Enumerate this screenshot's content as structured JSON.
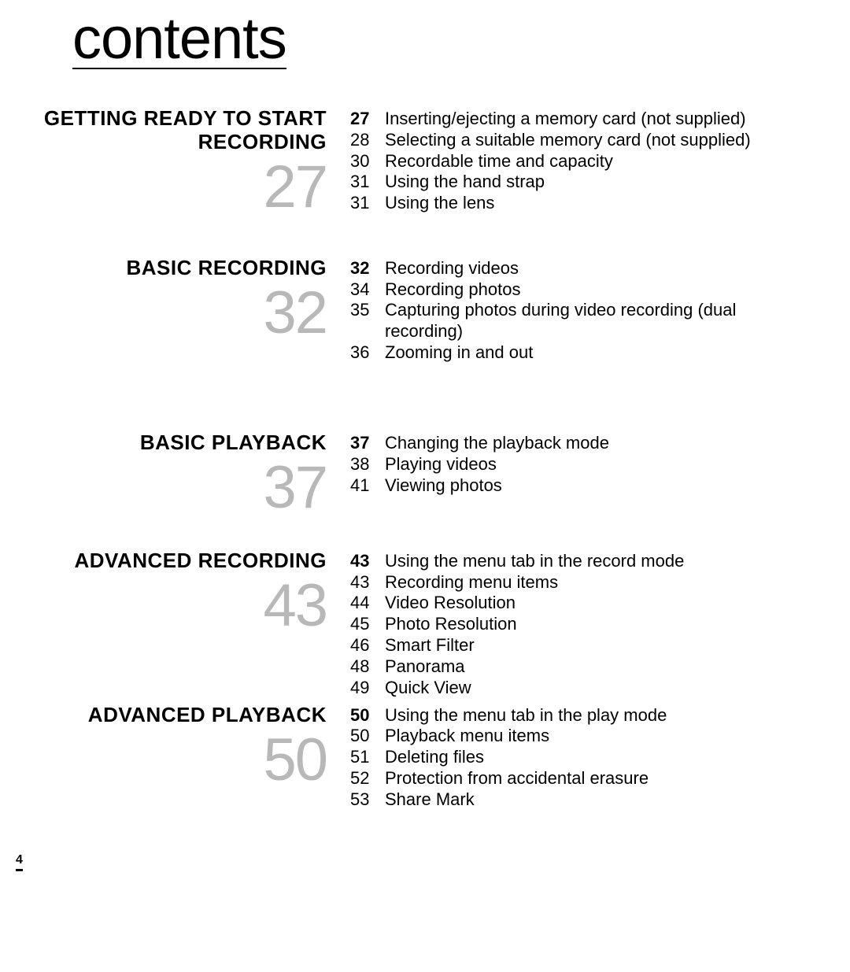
{
  "title": "contents",
  "pageNumber": "4",
  "gap_after": [
    50,
    86,
    40,
    6,
    12
  ],
  "sections": [
    {
      "title": "GETTING READY TO START RECORDING",
      "number": "27",
      "entries": [
        {
          "page": "27",
          "bold": true,
          "text": "Inserting/ejecting a memory card (not supplied)"
        },
        {
          "page": "28",
          "bold": false,
          "text": "Selecting a suitable memory card (not supplied)"
        },
        {
          "page": "30",
          "bold": false,
          "text": "Recordable time and capacity"
        },
        {
          "page": "31",
          "bold": false,
          "text": "Using the hand strap"
        },
        {
          "page": "31",
          "bold": false,
          "text": "Using the lens"
        }
      ]
    },
    {
      "title": "BASIC RECORDING",
      "number": "32",
      "entries": [
        {
          "page": "32",
          "bold": true,
          "text": "Recording videos"
        },
        {
          "page": "34",
          "bold": false,
          "text": "Recording photos"
        },
        {
          "page": "35",
          "bold": false,
          "text": "Capturing photos during video recording (dual recording)"
        },
        {
          "page": "36",
          "bold": false,
          "text": "Zooming in and out"
        }
      ]
    },
    {
      "title": "BASIC PLAYBACK",
      "number": "37",
      "entries": [
        {
          "page": "37",
          "bold": true,
          "text": "Changing the playback mode"
        },
        {
          "page": "38",
          "bold": false,
          "text": "Playing videos"
        },
        {
          "page": "41",
          "bold": false,
          "text": "Viewing photos"
        }
      ]
    },
    {
      "title": "ADVANCED RECORDING",
      "number": "43",
      "entries": [
        {
          "page": "43",
          "bold": true,
          "text": "Using the menu tab in the record mode"
        },
        {
          "page": "43",
          "bold": false,
          "text": "Recording menu items"
        },
        {
          "page": "44",
          "bold": false,
          "text": "Video Resolution"
        },
        {
          "page": "45",
          "bold": false,
          "text": "Photo Resolution"
        },
        {
          "page": "46",
          "bold": false,
          "text": "Smart Filter"
        },
        {
          "page": "48",
          "bold": false,
          "text": "Panorama"
        },
        {
          "page": "49",
          "bold": false,
          "text": "Quick View"
        }
      ]
    },
    {
      "title": "ADVANCED PLAYBACK",
      "number": "50",
      "entries": [
        {
          "page": "50",
          "bold": true,
          "text": "Using the menu tab in the play mode"
        },
        {
          "page": "50",
          "bold": false,
          "text": "Playback menu items"
        },
        {
          "page": "51",
          "bold": false,
          "text": "Deleting files"
        },
        {
          "page": "52",
          "bold": false,
          "text": "Protection from accidental erasure"
        },
        {
          "page": "53",
          "bold": false,
          "text": "Share Mark"
        }
      ]
    }
  ]
}
